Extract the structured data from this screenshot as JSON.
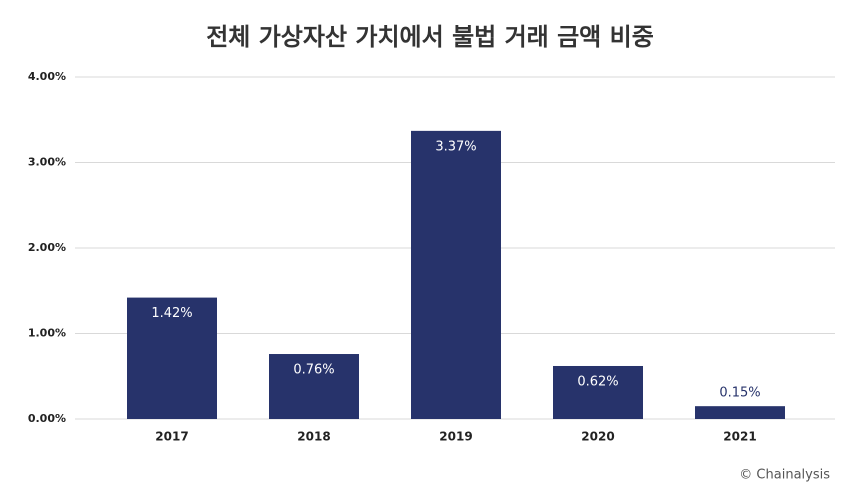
{
  "chart_data": {
    "type": "bar",
    "title": "전체 가상자산 가치에서 불법 거래 금액 비중",
    "categories": [
      "2017",
      "2018",
      "2019",
      "2020",
      "2021"
    ],
    "values": [
      1.42,
      0.76,
      3.37,
      0.62,
      0.15
    ],
    "value_labels": [
      "1.42%",
      "0.76%",
      "3.37%",
      "0.62%",
      "0.15%"
    ],
    "color": "#27336b",
    "ylim": [
      0,
      4
    ],
    "yticks": [
      {
        "value": 0,
        "label": "0.00%"
      },
      {
        "value": 1,
        "label": "1.00%"
      },
      {
        "value": 2,
        "label": "2.00%"
      },
      {
        "value": 3,
        "label": "3.00%"
      },
      {
        "value": 4,
        "label": "4.00%"
      }
    ],
    "grid": true,
    "source": "© Chainalysis"
  }
}
